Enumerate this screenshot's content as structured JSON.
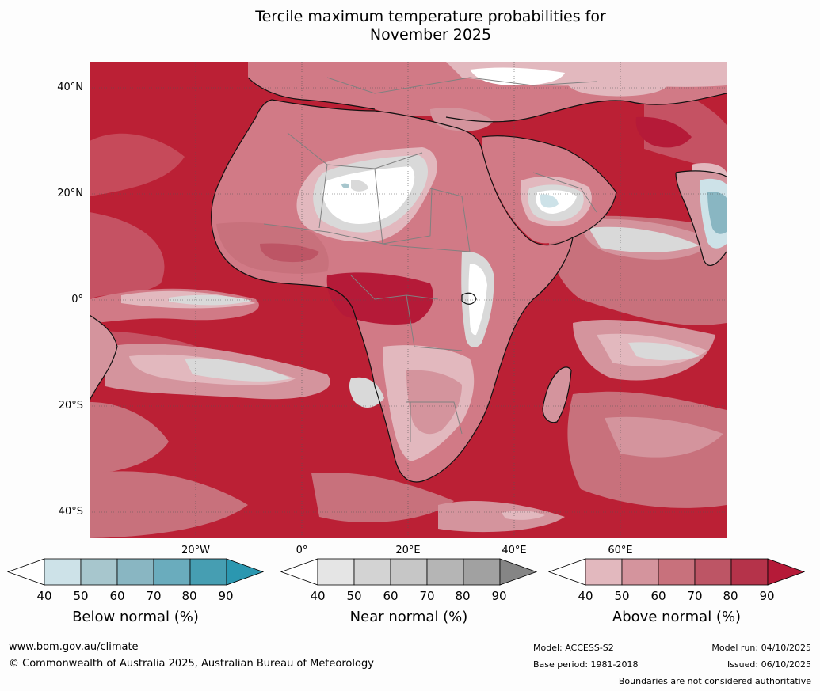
{
  "title": {
    "line1": "Tercile maximum temperature probabilities for",
    "line2": "November 2025"
  },
  "map": {
    "lat_labels": [
      "40°N",
      "20°N",
      "0°",
      "20°S",
      "40°S"
    ],
    "lon_labels": [
      "20°W",
      "0°",
      "20°E",
      "40°E",
      "60°E"
    ],
    "colors": {
      "ocean_base": "#bb2035",
      "land_base": "#d17a86",
      "coast": "#111111",
      "borders": "#808080"
    }
  },
  "legend": {
    "below": {
      "title": "Below normal (%)",
      "ticks": [
        "40",
        "50",
        "60",
        "70",
        "80",
        "90"
      ],
      "colors": [
        "#ffffff",
        "#cde2e8",
        "#a7c6cd",
        "#89b6c2",
        "#6aacbd",
        "#469eb2",
        "#2b97b0"
      ]
    },
    "near": {
      "title": "Near normal (%)",
      "ticks": [
        "40",
        "50",
        "60",
        "70",
        "80",
        "90"
      ],
      "colors": [
        "#ffffff",
        "#e5e5e5",
        "#d3d3d3",
        "#c6c6c6",
        "#b5b5b5",
        "#a1a1a1",
        "#858585"
      ]
    },
    "above": {
      "title": "Above normal (%)",
      "ticks": [
        "40",
        "50",
        "60",
        "70",
        "80",
        "90"
      ],
      "colors": [
        "#ffffff",
        "#e2b8be",
        "#d4949d",
        "#c8717c",
        "#bd5565",
        "#b5334a",
        "#b51a38"
      ]
    }
  },
  "footer": {
    "website": "www.bom.gov.au/climate",
    "copyright": "© Commonwealth of Australia 2025, Australian Bureau of Meteorology",
    "model": "Model: ACCESS-S2",
    "base_period": "Base period: 1981-2018",
    "model_run": "Model run: 04/10/2025",
    "issued": "Issued: 06/10/2025",
    "disclaimer": "Boundaries are not considered authoritative"
  }
}
